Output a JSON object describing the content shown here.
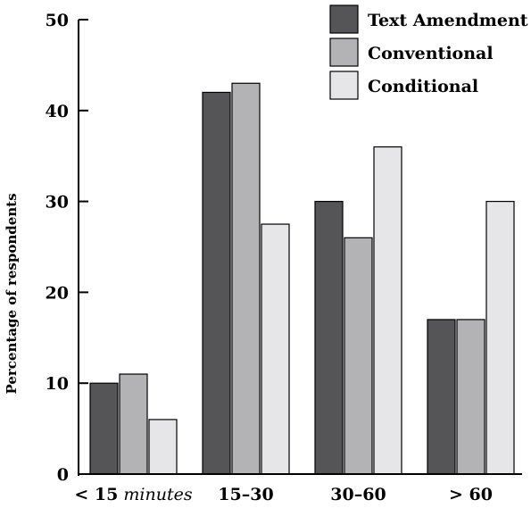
{
  "chart_data": {
    "type": "bar",
    "title": "",
    "ylabel": "Percentage of respondents",
    "xlabel": "",
    "ylim": [
      0,
      50
    ],
    "yticks": [
      0,
      10,
      20,
      30,
      40,
      50
    ],
    "categories": [
      {
        "main": "< 15",
        "suffix": "minutes"
      },
      {
        "main": "15–30",
        "suffix": ""
      },
      {
        "main": "30–60",
        "suffix": ""
      },
      {
        "main": "> 60",
        "suffix": ""
      }
    ],
    "series": [
      {
        "name": "Text Amendment",
        "color": "#555558",
        "values": [
          10,
          42,
          30,
          17
        ]
      },
      {
        "name": "Conventional",
        "color": "#b3b3b6",
        "values": [
          11,
          43,
          26,
          17
        ]
      },
      {
        "name": "Conditional",
        "color": "#e6e6e8",
        "values": [
          6,
          27.5,
          36,
          30
        ]
      }
    ],
    "legend_position": "top-right",
    "grid": false
  }
}
